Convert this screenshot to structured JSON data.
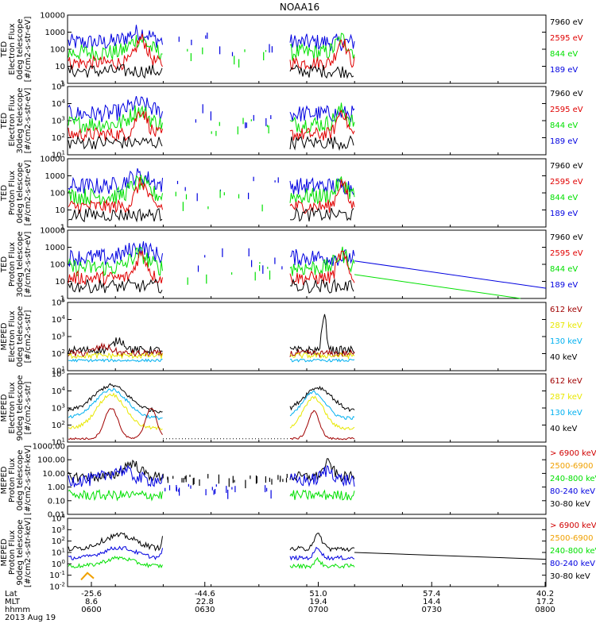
{
  "title": "NOAA16",
  "colors": {
    "frame": "#000000",
    "black": "#000000",
    "red": "#e00000",
    "green": "#00e000",
    "blue": "#0000e0",
    "darkred": "#a00000",
    "yellow": "#e8e800",
    "cyan": "#00b0f0",
    "orange": "#f0a000",
    "bright_red": "#d00000"
  },
  "chart_data": [
    {
      "type": "line",
      "ylabel": [
        "TED",
        "Electron Flux",
        "0deg telescope",
        "[#/cm2-s-str-eV]"
      ],
      "yscale": "log",
      "yticks": [
        "1",
        "10",
        "100",
        "1000",
        "10000"
      ],
      "ylim": [
        1,
        10000
      ],
      "legend": [
        {
          "label": "7960 eV",
          "color": "black"
        },
        {
          "label": "2595 eV",
          "color": "red"
        },
        {
          "label": "844 eV",
          "color": "green"
        },
        {
          "label": "189 eV",
          "color": "blue"
        }
      ]
    },
    {
      "type": "line",
      "ylabel": [
        "TED",
        "Electron Flux",
        "30deg telescope",
        "[#/cm2-s-str-eV]"
      ],
      "yscale": "log",
      "yticks": [
        "10^1",
        "10^2",
        "10^3",
        "10^4",
        "10^5"
      ],
      "ylim": [
        10,
        100000
      ],
      "legend": [
        {
          "label": "7960 eV",
          "color": "black"
        },
        {
          "label": "2595 eV",
          "color": "red"
        },
        {
          "label": "844 eV",
          "color": "green"
        },
        {
          "label": "189 eV",
          "color": "blue"
        }
      ]
    },
    {
      "type": "line",
      "ylabel": [
        "TED",
        "Proton Flux",
        "0deg telescope",
        "[#/cm2-s-str-eV]"
      ],
      "yscale": "log",
      "yticks": [
        "1",
        "10",
        "100",
        "1000",
        "10000"
      ],
      "ylim": [
        1,
        10000
      ],
      "legend": [
        {
          "label": "7960 eV",
          "color": "black"
        },
        {
          "label": "2595 eV",
          "color": "red"
        },
        {
          "label": "844 eV",
          "color": "green"
        },
        {
          "label": "189 eV",
          "color": "blue"
        }
      ]
    },
    {
      "type": "line",
      "ylabel": [
        "TED",
        "Proton Flux",
        "30deg telescope",
        "[#/cm2-s-str-eV]"
      ],
      "yscale": "log",
      "yticks": [
        "1",
        "10",
        "100",
        "1000",
        "10000"
      ],
      "ylim": [
        1,
        10000
      ],
      "legend": [
        {
          "label": "7960 eV",
          "color": "black"
        },
        {
          "label": "2595 eV",
          "color": "red"
        },
        {
          "label": "844 eV",
          "color": "green"
        },
        {
          "label": "189 eV",
          "color": "blue"
        }
      ]
    },
    {
      "type": "line",
      "ylabel": [
        "MEPED",
        "Electron Flux",
        "0deg telescope",
        "[#/cm2-s-str]"
      ],
      "yscale": "log",
      "yticks": [
        "10^1",
        "10^2",
        "10^3",
        "10^4",
        "10^5"
      ],
      "ylim": [
        10,
        100000
      ],
      "legend": [
        {
          "label": "612 keV",
          "color": "darkred"
        },
        {
          "label": "287 keV",
          "color": "yellow"
        },
        {
          "label": "130 keV",
          "color": "cyan"
        },
        {
          "label": "40 keV",
          "color": "black"
        }
      ]
    },
    {
      "type": "line",
      "ylabel": [
        "MEPED",
        "Electron Flux",
        "90deg telescope",
        "[#/cm2-s-str]"
      ],
      "yscale": "log",
      "yticks": [
        "10^1",
        "10^2",
        "10^3",
        "10^4",
        "10^5"
      ],
      "ylim": [
        10,
        100000
      ],
      "legend": [
        {
          "label": "612 keV",
          "color": "darkred"
        },
        {
          "label": "287 keV",
          "color": "yellow"
        },
        {
          "label": "130 keV",
          "color": "cyan"
        },
        {
          "label": "40 keV",
          "color": "black"
        }
      ]
    },
    {
      "type": "line",
      "ylabel": [
        "MEPED",
        "Proton Flux",
        "0deg telescope",
        "[#/cm2-s-str-keV]"
      ],
      "yscale": "log",
      "yticks": [
        "0.01",
        "0.10",
        "1.00",
        "10.00",
        "100.00",
        "1000.00"
      ],
      "ylim": [
        0.01,
        1000
      ],
      "legend": [
        {
          "label": "> 6900 keV",
          "color": "bright_red"
        },
        {
          "label": "2500-6900",
          "color": "orange"
        },
        {
          "label": "240-800 keV",
          "color": "green"
        },
        {
          "label": "80-240 keV",
          "color": "blue"
        },
        {
          "label": "30-80 keV",
          "color": "black"
        }
      ]
    },
    {
      "type": "line",
      "ylabel": [
        "MEPED",
        "Proton Flux",
        "90deg telescope",
        "[#/cm2-s-str-keV]"
      ],
      "yscale": "log",
      "yticks": [
        "10^-2",
        "10^-1",
        "10^0",
        "10^1",
        "10^2",
        "10^3",
        "10^4"
      ],
      "ylim": [
        0.01,
        10000
      ],
      "legend": [
        {
          "label": "> 6900 keV",
          "color": "bright_red"
        },
        {
          "label": "2500-6900",
          "color": "orange"
        },
        {
          "label": "240-800 keV",
          "color": "green"
        },
        {
          "label": "80-240 keV",
          "color": "blue"
        },
        {
          "label": "30-80 keV",
          "color": "black"
        }
      ]
    }
  ],
  "xaxis": {
    "row_labels": [
      "Lat",
      "MLT",
      "hhmm"
    ],
    "date": "2013 Aug 19",
    "ticks": [
      {
        "lat": "-25.6",
        "mlt": "8.6",
        "hhmm": "0600"
      },
      {
        "lat": "-44.6",
        "mlt": "22.8",
        "hhmm": "0630"
      },
      {
        "lat": "51.0",
        "mlt": "19.4",
        "hhmm": "0700"
      },
      {
        "lat": "57.4",
        "mlt": "14.4",
        "hhmm": "0730"
      },
      {
        "lat": "40.2",
        "mlt": "17.2",
        "hhmm": "0800"
      }
    ]
  }
}
